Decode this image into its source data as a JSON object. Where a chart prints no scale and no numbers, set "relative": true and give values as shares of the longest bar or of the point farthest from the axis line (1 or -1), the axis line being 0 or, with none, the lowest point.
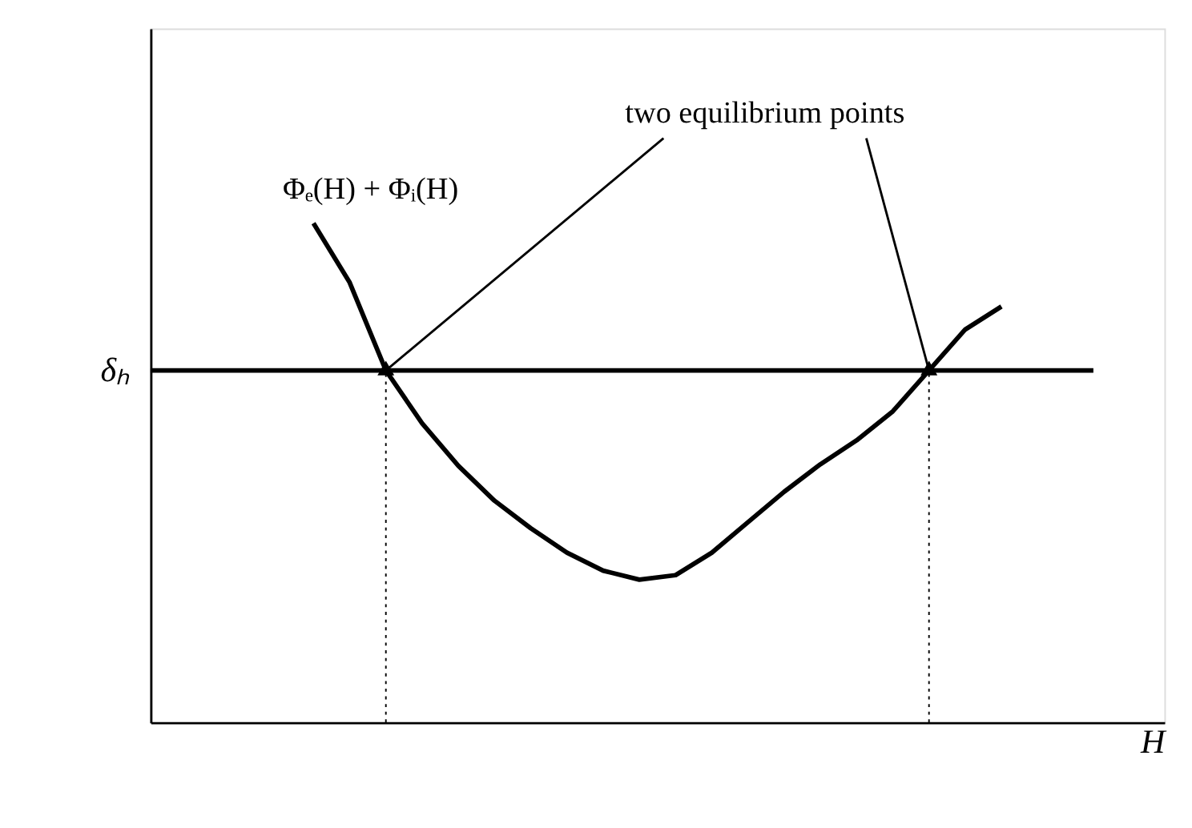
{
  "chart_data": {
    "type": "line",
    "relative": true,
    "xlabel": "H",
    "tick_labels": false,
    "grid": false,
    "marker": "none",
    "line_style": "solid",
    "categories": [
      null,
      null,
      null,
      null,
      null,
      null,
      null,
      null,
      null,
      null,
      null,
      null,
      null,
      null,
      null,
      null,
      null,
      null,
      null,
      null,
      null,
      null,
      null,
      null,
      null,
      null,
      null,
      null
    ],
    "series": [
      {
        "name": "Φₑ(H) + Φᵢ(H)",
        "color": "#000000",
        "values": [
          null,
          null,
          null,
          null,
          1.0,
          0.881,
          0.705,
          0.599,
          0.514,
          0.444,
          0.389,
          0.34,
          0.304,
          0.286,
          0.295,
          0.34,
          0.401,
          0.462,
          0.517,
          0.565,
          0.623,
          0.705,
          0.787,
          0.833,
          null,
          null,
          null,
          null
        ]
      }
    ],
    "ref_lines": [
      {
        "axis": "y",
        "value": 0.705,
        "label": "δₕ",
        "color": "#000000",
        "line_style": "solid"
      }
    ],
    "annotations": [
      "two equilibrium points"
    ]
  }
}
